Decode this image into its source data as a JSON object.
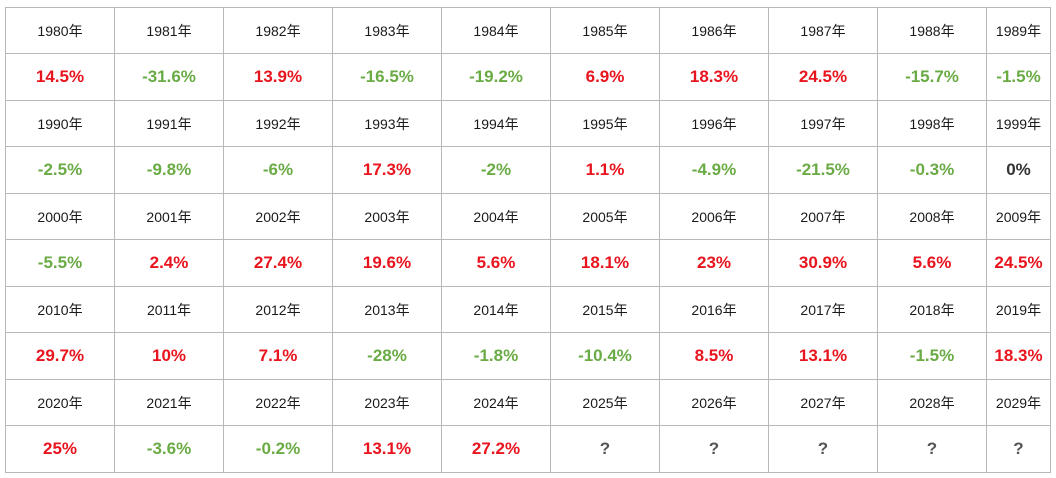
{
  "colors": {
    "positive": "#e8141e",
    "negative": "#6aab45",
    "neutral": "#333333",
    "grid_line": "#b8b8b8"
  },
  "rows": [
    {
      "years": [
        "1980年",
        "1981年",
        "1982年",
        "1983年",
        "1984年",
        "1985年",
        "1986年",
        "1987年",
        "1988年",
        "1989年"
      ],
      "values": [
        {
          "text": "14.5%",
          "tone": "pos"
        },
        {
          "text": "-31.6%",
          "tone": "neg"
        },
        {
          "text": "13.9%",
          "tone": "pos"
        },
        {
          "text": "-16.5%",
          "tone": "neg"
        },
        {
          "text": "-19.2%",
          "tone": "neg"
        },
        {
          "text": "6.9%",
          "tone": "pos"
        },
        {
          "text": "18.3%",
          "tone": "pos"
        },
        {
          "text": "24.5%",
          "tone": "pos"
        },
        {
          "text": "-15.7%",
          "tone": "neg"
        },
        {
          "text": "-1.5%",
          "tone": "neg"
        }
      ]
    },
    {
      "years": [
        "1990年",
        "1991年",
        "1992年",
        "1993年",
        "1994年",
        "1995年",
        "1996年",
        "1997年",
        "1998年",
        "1999年"
      ],
      "values": [
        {
          "text": "-2.5%",
          "tone": "neg"
        },
        {
          "text": "-9.8%",
          "tone": "neg"
        },
        {
          "text": "-6%",
          "tone": "neg"
        },
        {
          "text": "17.3%",
          "tone": "pos"
        },
        {
          "text": "-2%",
          "tone": "neg"
        },
        {
          "text": "1.1%",
          "tone": "pos"
        },
        {
          "text": "-4.9%",
          "tone": "neg"
        },
        {
          "text": "-21.5%",
          "tone": "neg"
        },
        {
          "text": "-0.3%",
          "tone": "neg"
        },
        {
          "text": "0%",
          "tone": "zero"
        }
      ]
    },
    {
      "years": [
        "2000年",
        "2001年",
        "2002年",
        "2003年",
        "2004年",
        "2005年",
        "2006年",
        "2007年",
        "2008年",
        "2009年"
      ],
      "values": [
        {
          "text": "-5.5%",
          "tone": "neg"
        },
        {
          "text": "2.4%",
          "tone": "pos"
        },
        {
          "text": "27.4%",
          "tone": "pos"
        },
        {
          "text": "19.6%",
          "tone": "pos"
        },
        {
          "text": "5.6%",
          "tone": "pos"
        },
        {
          "text": "18.1%",
          "tone": "pos"
        },
        {
          "text": "23%",
          "tone": "pos"
        },
        {
          "text": "30.9%",
          "tone": "pos"
        },
        {
          "text": "5.6%",
          "tone": "pos"
        },
        {
          "text": "24.5%",
          "tone": "pos"
        }
      ]
    },
    {
      "years": [
        "2010年",
        "2011年",
        "2012年",
        "2013年",
        "2014年",
        "2015年",
        "2016年",
        "2017年",
        "2018年",
        "2019年"
      ],
      "values": [
        {
          "text": "29.7%",
          "tone": "pos"
        },
        {
          "text": "10%",
          "tone": "pos"
        },
        {
          "text": "7.1%",
          "tone": "pos"
        },
        {
          "text": "-28%",
          "tone": "neg"
        },
        {
          "text": "-1.8%",
          "tone": "neg"
        },
        {
          "text": "-10.4%",
          "tone": "neg"
        },
        {
          "text": "8.5%",
          "tone": "pos"
        },
        {
          "text": "13.1%",
          "tone": "pos"
        },
        {
          "text": "-1.5%",
          "tone": "neg"
        },
        {
          "text": "18.3%",
          "tone": "pos"
        }
      ]
    },
    {
      "years": [
        "2020年",
        "2021年",
        "2022年",
        "2023年",
        "2024年",
        "2025年",
        "2026年",
        "2027年",
        "2028年",
        "2029年"
      ],
      "values": [
        {
          "text": "25%",
          "tone": "pos"
        },
        {
          "text": "-3.6%",
          "tone": "neg"
        },
        {
          "text": "-0.2%",
          "tone": "neg"
        },
        {
          "text": "13.1%",
          "tone": "pos"
        },
        {
          "text": "27.2%",
          "tone": "pos"
        },
        {
          "text": "?",
          "tone": "unknown"
        },
        {
          "text": "?",
          "tone": "unknown"
        },
        {
          "text": "?",
          "tone": "unknown"
        },
        {
          "text": "?",
          "tone": "unknown"
        },
        {
          "text": "?",
          "tone": "unknown"
        }
      ]
    }
  ]
}
